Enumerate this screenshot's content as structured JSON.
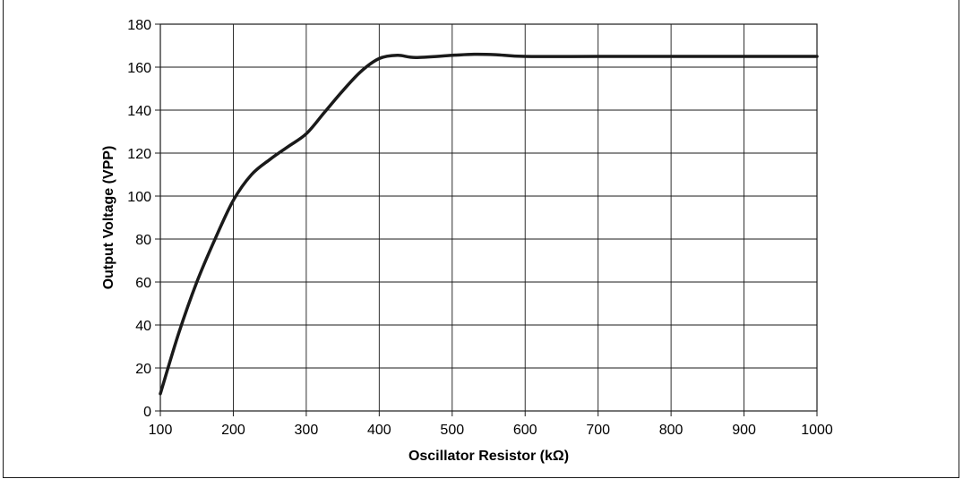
{
  "chart_data": {
    "type": "line",
    "title": "",
    "xlabel": "Oscillator Resistor (kΩ)",
    "ylabel": "Output Voltage (VPP)",
    "xlim": [
      100,
      1000
    ],
    "ylim": [
      0,
      180
    ],
    "xticks": [
      100,
      200,
      300,
      400,
      500,
      600,
      700,
      800,
      900,
      1000
    ],
    "yticks": [
      0,
      20,
      40,
      60,
      80,
      100,
      120,
      140,
      160,
      180
    ],
    "grid": true,
    "line_color": "#1a1a1a",
    "series": [
      {
        "x": [
          100,
          125,
          150,
          175,
          200,
          225,
          250,
          275,
          300,
          325,
          350,
          375,
          400,
          425,
          450,
          500,
          530,
          560,
          600,
          700,
          800,
          900,
          1000
        ],
        "y": [
          8,
          36,
          60,
          80,
          98,
          110,
          117,
          123,
          129,
          139,
          149,
          158,
          164,
          165.5,
          164.5,
          165.5,
          166,
          165.8,
          165,
          165,
          165,
          165,
          165
        ]
      }
    ]
  }
}
